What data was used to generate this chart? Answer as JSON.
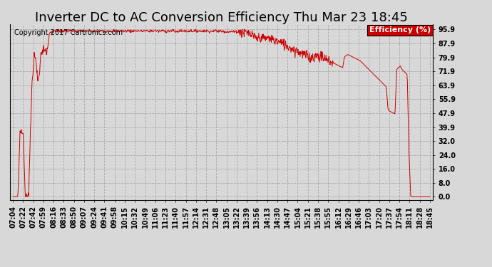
{
  "title": "Inverter DC to AC Conversion Efficiency Thu Mar 23 18:45",
  "copyright_text": "Copyright 2017 Cartronics.com",
  "legend_label": "Efficiency (%)",
  "legend_bg": "#cc0000",
  "legend_text_color": "#ffffff",
  "line_color": "#cc0000",
  "background_color": "#d8d8d8",
  "plot_bg_color": "#d8d8d8",
  "grid_color": "#aaaaaa",
  "yticks": [
    0.0,
    8.0,
    16.0,
    24.0,
    32.0,
    39.9,
    47.9,
    55.9,
    63.9,
    71.9,
    79.9,
    87.9,
    95.9
  ],
  "ylim": [
    -2.0,
    99.0
  ],
  "xtick_labels": [
    "07:04",
    "07:22",
    "07:42",
    "07:59",
    "08:16",
    "08:33",
    "08:50",
    "09:07",
    "09:24",
    "09:41",
    "09:58",
    "10:15",
    "10:32",
    "10:49",
    "11:06",
    "11:23",
    "11:40",
    "11:57",
    "12:14",
    "12:31",
    "12:48",
    "13:05",
    "13:22",
    "13:39",
    "13:56",
    "14:13",
    "14:30",
    "14:47",
    "15:04",
    "15:21",
    "15:38",
    "15:55",
    "16:12",
    "16:29",
    "16:46",
    "17:03",
    "17:20",
    "17:37",
    "17:54",
    "18:11",
    "18:28",
    "18:45"
  ],
  "title_fontsize": 13,
  "copyright_fontsize": 7,
  "tick_fontsize": 7,
  "legend_fontsize": 8,
  "curve": [
    0.0,
    0.0,
    0.0,
    0.5,
    36.0,
    37.5,
    36.5,
    0.5,
    0.0,
    0.0,
    36.5,
    66.0,
    80.0,
    82.0,
    68.0,
    66.5,
    82.0,
    84.0,
    85.0,
    83.5,
    85.5,
    94.0,
    94.5,
    95.0,
    95.2,
    95.0,
    95.3,
    95.1,
    94.9,
    95.2,
    95.1,
    95.0,
    95.3,
    95.1,
    95.2,
    95.0,
    94.8,
    95.1,
    94.9,
    95.2,
    95.3,
    95.0,
    94.8,
    95.1,
    95.2,
    95.0,
    94.5,
    94.8,
    95.0,
    94.9,
    95.1,
    95.2,
    95.0,
    94.8,
    95.1,
    95.2,
    95.0,
    94.8,
    95.3,
    95.0,
    94.9,
    95.1,
    95.2,
    95.0,
    94.8,
    95.1,
    95.2,
    95.0,
    94.8,
    95.3,
    95.0,
    95.1,
    95.2,
    95.0,
    94.8,
    95.1,
    95.2,
    95.0,
    94.8,
    95.3,
    95.0,
    95.1,
    95.2,
    95.0,
    94.8,
    95.1,
    95.2,
    95.0,
    94.8,
    95.3,
    94.8,
    95.1,
    95.2,
    94.8,
    94.5,
    95.0,
    95.1,
    94.9,
    95.2,
    95.0,
    94.8,
    95.1,
    95.2,
    95.0,
    94.8,
    95.1,
    95.2,
    95.0,
    94.8,
    95.3,
    95.0,
    95.1,
    94.8,
    95.0,
    94.8,
    95.1,
    95.2,
    95.0,
    94.8,
    95.1,
    94.8,
    95.0,
    94.5,
    94.8,
    94.3,
    94.8,
    94.6,
    94.5,
    94.8,
    94.5,
    94.8,
    94.5,
    94.2,
    94.0,
    93.8,
    93.5,
    93.0,
    92.5,
    91.5,
    91.0,
    90.5,
    91.0,
    91.5,
    91.0,
    90.5,
    90.8,
    91.0,
    90.8,
    90.5,
    90.2,
    89.5,
    89.2,
    88.8,
    88.5,
    88.0,
    87.5,
    87.0,
    86.5,
    86.0,
    85.5,
    85.0,
    84.5,
    84.0,
    83.5,
    83.0,
    82.5,
    82.0,
    81.5,
    81.0,
    80.5,
    80.0,
    79.8,
    80.0,
    80.5,
    80.8,
    81.0,
    80.5,
    80.0,
    79.5,
    79.0,
    78.5,
    78.0,
    77.5,
    77.0,
    76.5,
    76.0,
    75.5,
    75.0,
    74.5,
    74.0,
    80.0,
    81.0,
    81.5,
    81.0,
    80.5,
    80.0,
    79.5,
    79.0,
    78.5,
    78.0,
    77.0,
    76.0,
    75.0,
    74.0,
    73.0,
    72.0,
    71.0,
    70.0,
    69.0,
    68.0,
    67.0,
    66.0,
    65.0,
    64.0,
    63.0,
    50.0,
    49.0,
    48.5,
    48.0,
    47.5,
    73.0,
    74.0,
    75.0,
    73.0,
    72.0,
    71.0,
    70.0,
    25.0,
    0.5,
    0.0,
    0.0,
    0.0,
    0.0,
    0.0,
    0.0,
    0.0,
    0.0,
    0.0,
    0.0,
    0.0
  ]
}
